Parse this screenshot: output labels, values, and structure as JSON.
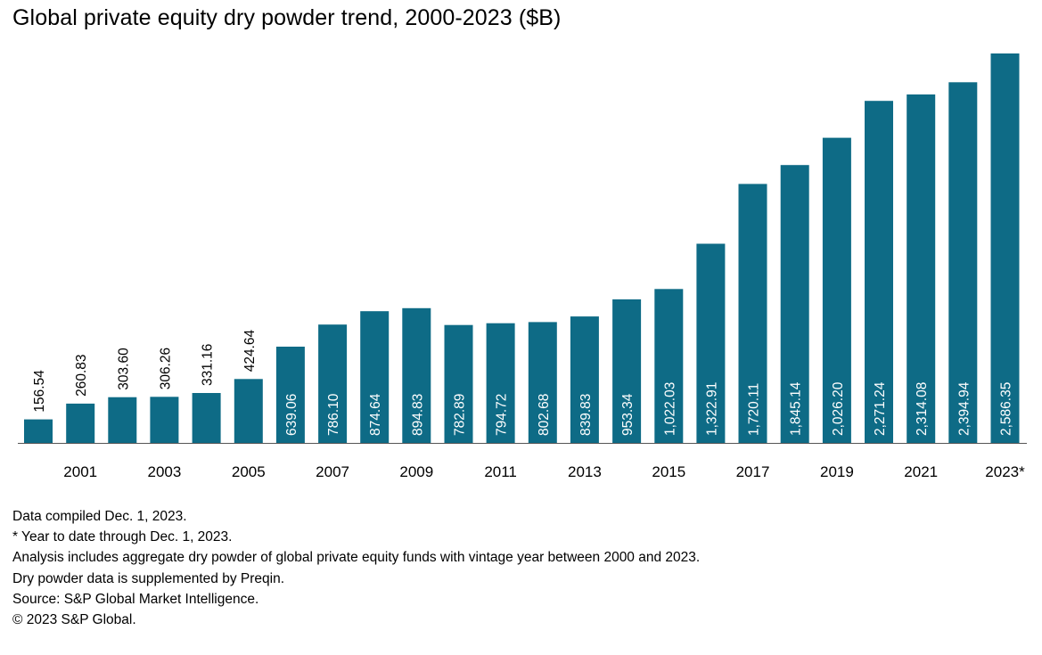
{
  "chart_data": {
    "type": "bar",
    "title": "Global private equity dry powder trend, 2000-2023 ($B)",
    "categories": [
      "2000",
      "2001",
      "2002",
      "2003",
      "2004",
      "2005",
      "2006",
      "2007",
      "2008",
      "2009",
      "2010",
      "2011",
      "2012",
      "2013",
      "2014",
      "2015",
      "2016",
      "2017",
      "2018",
      "2019",
      "2020",
      "2021",
      "2022",
      "2023*"
    ],
    "values": [
      156.54,
      260.83,
      303.6,
      306.26,
      331.16,
      424.64,
      639.06,
      786.1,
      874.64,
      894.83,
      782.89,
      794.72,
      802.68,
      839.83,
      953.34,
      1022.03,
      1322.91,
      1720.11,
      1845.14,
      2026.2,
      2271.24,
      2314.08,
      2394.94,
      2586.35
    ],
    "value_labels": [
      "156.54",
      "260.83",
      "303.60",
      "306.26",
      "331.16",
      "424.64",
      "639.06",
      "786.10",
      "874.64",
      "894.83",
      "782.89",
      "794.72",
      "802.68",
      "839.83",
      "953.34",
      "1,022.03",
      "1,322.91",
      "1,720.11",
      "1,845.14",
      "2,026.20",
      "2,271.24",
      "2,314.08",
      "2,394.94",
      "2,586.35"
    ],
    "x_tick_labels": [
      "2001",
      "2003",
      "2005",
      "2007",
      "2009",
      "2011",
      "2013",
      "2015",
      "2017",
      "2019",
      "2021",
      "2023*"
    ],
    "ylim": [
      0,
      2600
    ],
    "grid": false,
    "legend": "none",
    "bar_color": "#0e6b86"
  },
  "notes": [
    "Data compiled Dec. 1, 2023.",
    "* Year to date through Dec. 1, 2023.",
    "Analysis includes aggregate dry powder of global private equity funds with vintage year between 2000 and 2023.",
    "Dry powder data is supplemented by Preqin.",
    "Source: S&P Global Market Intelligence.",
    "© 2023 S&P Global."
  ]
}
